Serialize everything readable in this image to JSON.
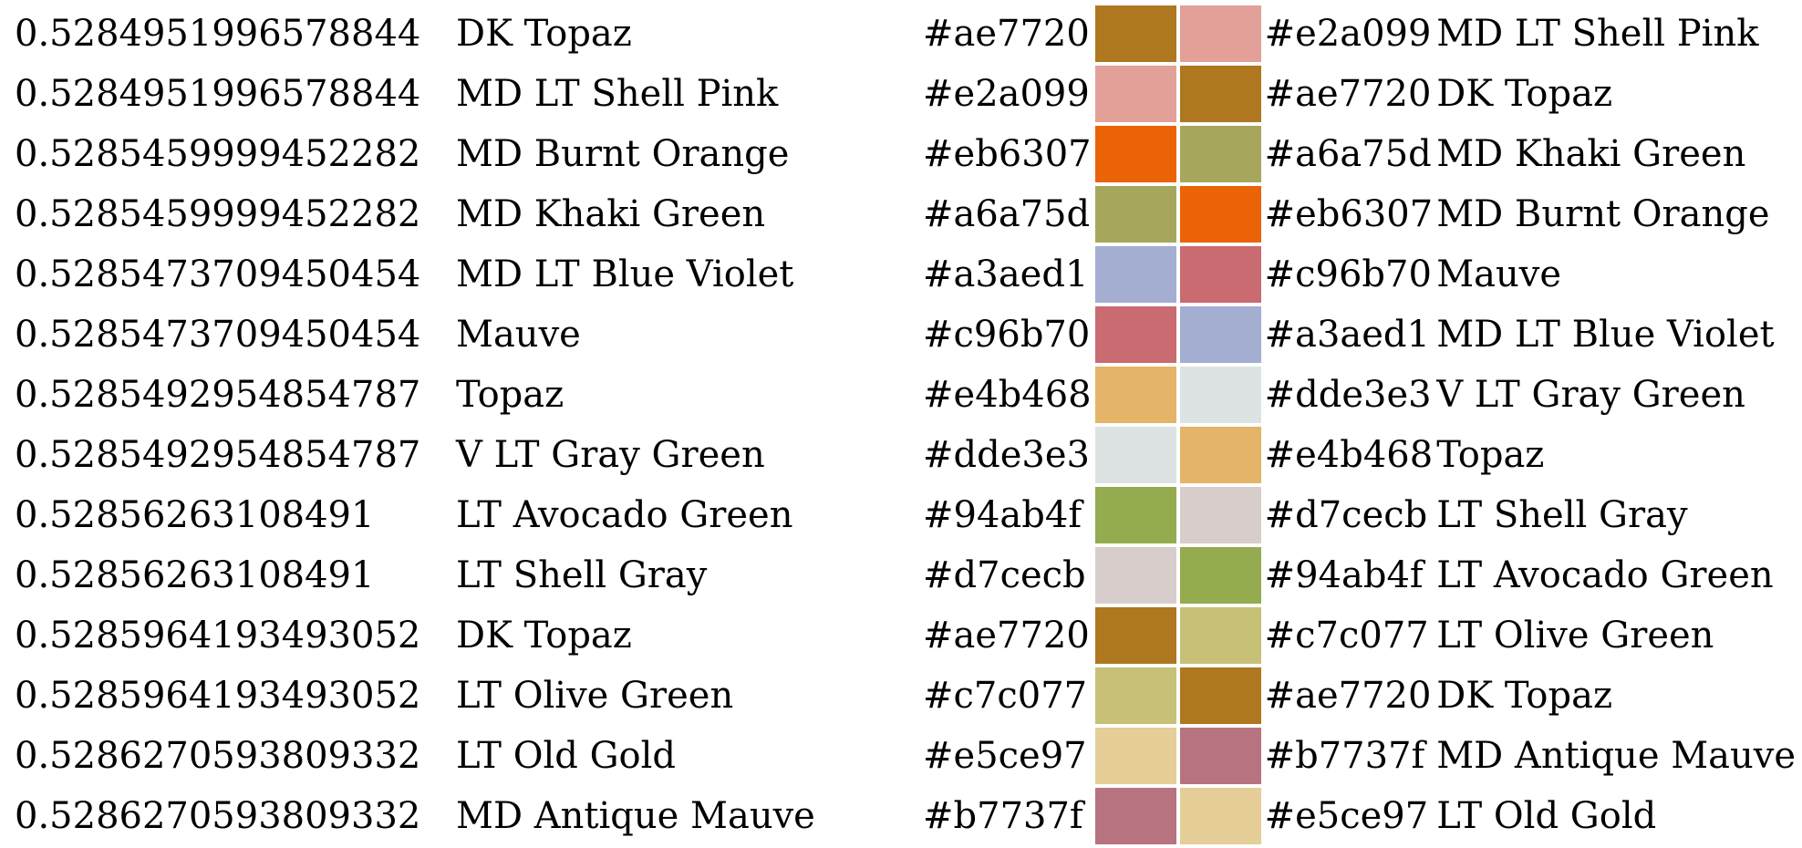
{
  "rows": [
    {
      "distance": "0.5284951996578844",
      "name1": "DK Topaz",
      "hex1": "#ae7720",
      "hex2": "#e2a099",
      "name2": "MD LT Shell Pink"
    },
    {
      "distance": "0.5284951996578844",
      "name1": "MD LT Shell Pink",
      "hex1": "#e2a099",
      "hex2": "#ae7720",
      "name2": "DK Topaz"
    },
    {
      "distance": "0.5285459999452282",
      "name1": "MD Burnt Orange",
      "hex1": "#eb6307",
      "hex2": "#a6a75d",
      "name2": "MD Khaki Green"
    },
    {
      "distance": "0.5285459999452282",
      "name1": "MD Khaki Green",
      "hex1": "#a6a75d",
      "hex2": "#eb6307",
      "name2": "MD Burnt Orange"
    },
    {
      "distance": "0.5285473709450454",
      "name1": "MD LT Blue Violet",
      "hex1": "#a3aed1",
      "hex2": "#c96b70",
      "name2": "Mauve"
    },
    {
      "distance": "0.5285473709450454",
      "name1": "Mauve",
      "hex1": "#c96b70",
      "hex2": "#a3aed1",
      "name2": "MD LT Blue Violet"
    },
    {
      "distance": "0.5285492954854787",
      "name1": "Topaz",
      "hex1": "#e4b468",
      "hex2": "#dde3e3",
      "name2": "V LT Gray Green"
    },
    {
      "distance": "0.5285492954854787",
      "name1": "V LT Gray Green",
      "hex1": "#dde3e3",
      "hex2": "#e4b468",
      "name2": "Topaz"
    },
    {
      "distance": "0.52856263108491",
      "name1": "LT Avocado Green",
      "hex1": "#94ab4f",
      "hex2": "#d7cecb",
      "name2": "LT Shell Gray"
    },
    {
      "distance": "0.52856263108491",
      "name1": "LT Shell Gray",
      "hex1": "#d7cecb",
      "hex2": "#94ab4f",
      "name2": "LT Avocado Green"
    },
    {
      "distance": "0.5285964193493052",
      "name1": "DK Topaz",
      "hex1": "#ae7720",
      "hex2": "#c7c077",
      "name2": "LT Olive Green"
    },
    {
      "distance": "0.5285964193493052",
      "name1": "LT Olive Green",
      "hex1": "#c7c077",
      "hex2": "#ae7720",
      "name2": "DK Topaz"
    },
    {
      "distance": "0.5286270593809332",
      "name1": "LT Old Gold",
      "hex1": "#e5ce97",
      "hex2": "#b7737f",
      "name2": "MD Antique Mauve"
    },
    {
      "distance": "0.5286270593809332",
      "name1": "MD Antique Mauve",
      "hex1": "#b7737f",
      "hex2": "#e5ce97",
      "name2": "LT Old Gold"
    }
  ]
}
